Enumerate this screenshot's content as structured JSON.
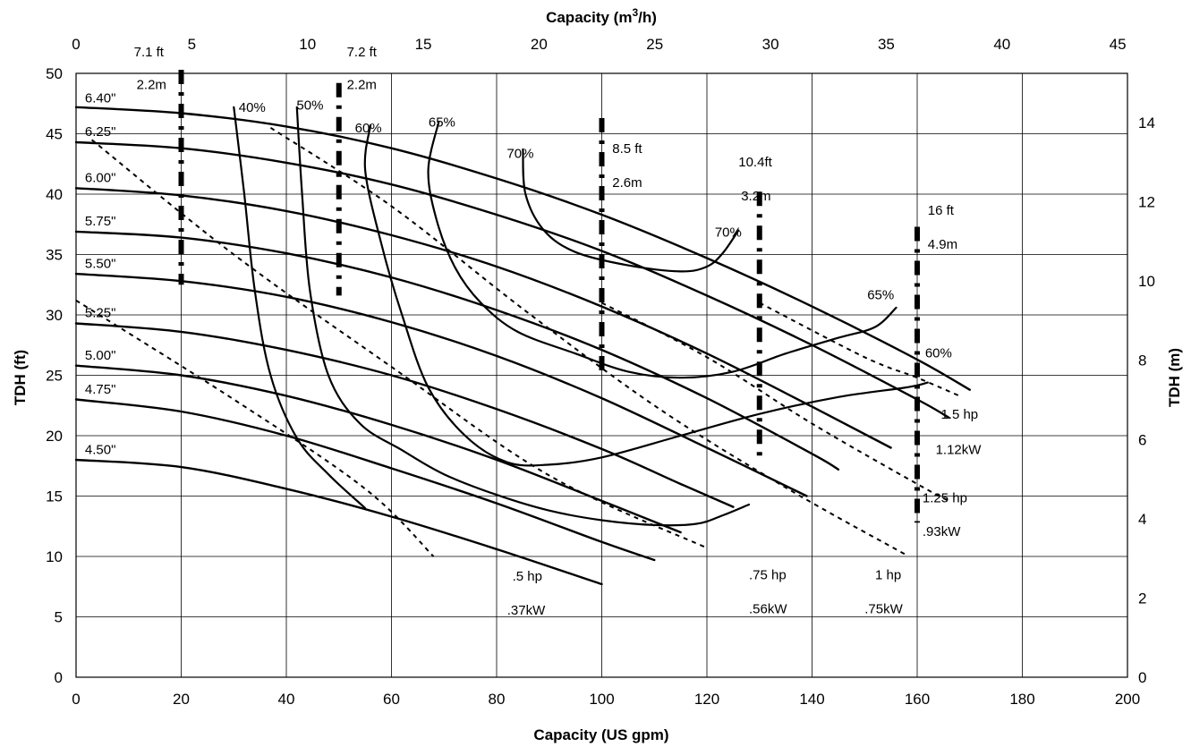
{
  "chart_data": {
    "type": "line",
    "xlabel": "Capacity (US gpm)",
    "x2label": "Capacity (m",
    "x2label_sup": "3",
    "x2label_end": "/h)",
    "ylabel": "TDH (ft)",
    "y2label": "TDH (m)",
    "xlim": [
      0,
      200
    ],
    "ylim": [
      0,
      50
    ],
    "x2lim": [
      0,
      45.42
    ],
    "y2lim": [
      0,
      15.24
    ],
    "x_ticks": [
      0,
      20,
      40,
      60,
      80,
      100,
      120,
      140,
      160,
      180,
      200
    ],
    "y_ticks": [
      0,
      5,
      10,
      15,
      20,
      25,
      30,
      35,
      40,
      45,
      50
    ],
    "x2_ticks": [
      0,
      5,
      10,
      15,
      20,
      25,
      30,
      35,
      40,
      45
    ],
    "y2_ticks": [
      0,
      2,
      4,
      6,
      8,
      10,
      12,
      14
    ],
    "grid": true,
    "impeller_curves": [
      {
        "name": "6.40\"",
        "label_at": [
          1,
          47.6
        ],
        "points": [
          [
            0,
            47.2
          ],
          [
            20,
            46.7
          ],
          [
            40,
            45.6
          ],
          [
            60,
            43.8
          ],
          [
            80,
            41.3
          ],
          [
            100,
            38.3
          ],
          [
            120,
            34.7
          ],
          [
            140,
            30.7
          ],
          [
            160,
            26.3
          ],
          [
            170,
            23.8
          ]
        ]
      },
      {
        "name": "6.25\"",
        "label_at": [
          1,
          44.8
        ],
        "points": [
          [
            0,
            44.3
          ],
          [
            20,
            43.8
          ],
          [
            40,
            42.6
          ],
          [
            60,
            40.8
          ],
          [
            80,
            38.3
          ],
          [
            100,
            35.3
          ],
          [
            120,
            31.6
          ],
          [
            140,
            27.5
          ],
          [
            160,
            23.0
          ],
          [
            166,
            21.5
          ]
        ]
      },
      {
        "name": "6.00\"",
        "label_at": [
          1,
          41.0
        ],
        "points": [
          [
            0,
            40.5
          ],
          [
            20,
            39.9
          ],
          [
            40,
            38.6
          ],
          [
            60,
            36.6
          ],
          [
            80,
            34.0
          ],
          [
            100,
            30.7
          ],
          [
            120,
            26.8
          ],
          [
            140,
            22.4
          ],
          [
            155,
            19.0
          ]
        ]
      },
      {
        "name": "5.75\"",
        "label_at": [
          1,
          37.4
        ],
        "points": [
          [
            0,
            36.9
          ],
          [
            20,
            36.4
          ],
          [
            40,
            35.1
          ],
          [
            60,
            33.1
          ],
          [
            80,
            30.4
          ],
          [
            100,
            27.1
          ],
          [
            120,
            23.1
          ],
          [
            140,
            18.5
          ],
          [
            145,
            17.2
          ]
        ]
      },
      {
        "name": "5.50\"",
        "label_at": [
          1,
          33.9
        ],
        "points": [
          [
            0,
            33.4
          ],
          [
            20,
            32.8
          ],
          [
            40,
            31.5
          ],
          [
            60,
            29.4
          ],
          [
            80,
            26.6
          ],
          [
            100,
            23.1
          ],
          [
            120,
            19.0
          ],
          [
            139,
            15.0
          ]
        ]
      },
      {
        "name": "5.25\"",
        "label_at": [
          1,
          29.8
        ],
        "points": [
          [
            0,
            29.3
          ],
          [
            20,
            28.6
          ],
          [
            40,
            27.1
          ],
          [
            60,
            25.0
          ],
          [
            80,
            22.2
          ],
          [
            100,
            18.9
          ],
          [
            115,
            16.0
          ],
          [
            125,
            14.1
          ]
        ]
      },
      {
        "name": "5.00\"",
        "label_at": [
          1,
          26.3
        ],
        "points": [
          [
            0,
            25.8
          ],
          [
            20,
            25.0
          ],
          [
            40,
            23.3
          ],
          [
            60,
            20.9
          ],
          [
            80,
            18.0
          ],
          [
            100,
            14.6
          ],
          [
            115,
            12.0
          ]
        ]
      },
      {
        "name": "4.75\"",
        "label_at": [
          1,
          23.5
        ],
        "points": [
          [
            0,
            23.0
          ],
          [
            20,
            22.0
          ],
          [
            40,
            20.0
          ],
          [
            60,
            17.3
          ],
          [
            80,
            14.4
          ],
          [
            100,
            11.2
          ],
          [
            110,
            9.7
          ]
        ]
      },
      {
        "name": "4.50\"",
        "label_at": [
          1,
          18.5
        ],
        "points": [
          [
            0,
            18.0
          ],
          [
            20,
            17.4
          ],
          [
            40,
            15.6
          ],
          [
            60,
            13.3
          ],
          [
            80,
            10.6
          ],
          [
            100,
            7.7
          ]
        ]
      }
    ],
    "efficiency_curves": [
      {
        "name": "40%",
        "label_at": [
          33.5,
          46.8
        ],
        "points": [
          [
            30,
            47.2
          ],
          [
            32,
            40
          ],
          [
            34,
            32
          ],
          [
            37,
            25
          ],
          [
            42,
            19.8
          ],
          [
            48,
            16.8
          ],
          [
            55,
            14.0
          ]
        ]
      },
      {
        "name": "50%",
        "label_at": [
          44.5,
          47.0
        ],
        "points": [
          [
            42,
            47.2
          ],
          [
            43,
            40
          ],
          [
            44.5,
            32
          ],
          [
            48,
            25
          ],
          [
            54,
            21
          ],
          [
            62,
            18.8
          ],
          [
            70,
            16.8
          ],
          [
            80,
            15.1
          ],
          [
            90,
            13.8
          ],
          [
            100,
            13.0
          ],
          [
            110,
            12.6
          ],
          [
            118,
            12.7
          ],
          [
            123,
            13.4
          ],
          [
            128,
            14.3
          ]
        ]
      },
      {
        "name": "60%",
        "label_at": [
          55.6,
          45.1
        ],
        "points": [
          [
            56,
            45.7
          ],
          [
            55,
            42
          ],
          [
            58,
            36
          ],
          [
            62,
            30
          ],
          [
            67,
            24
          ],
          [
            74,
            20
          ],
          [
            82,
            17.8
          ],
          [
            90,
            17.6
          ],
          [
            100,
            18.2
          ],
          [
            115,
            20.0
          ],
          [
            130,
            21.8
          ],
          [
            145,
            23.2
          ],
          [
            158,
            24.0
          ],
          [
            162,
            24.4
          ]
        ]
      },
      {
        "name": "65%",
        "label_at": [
          69.6,
          45.6
        ],
        "points": [
          [
            69,
            46.0
          ],
          [
            67,
            42.0
          ],
          [
            68.5,
            38
          ],
          [
            72,
            34
          ],
          [
            77,
            31
          ],
          [
            84,
            28.6
          ],
          [
            95,
            26.8
          ],
          [
            105,
            25.3
          ],
          [
            115,
            24.8
          ],
          [
            125,
            25.3
          ],
          [
            135,
            26.8
          ],
          [
            145,
            28.1
          ],
          [
            152,
            29.0
          ],
          [
            156,
            30.6
          ]
        ]
      },
      {
        "name": "70%",
        "label_at": [
          84.5,
          43.0
        ],
        "points": [
          [
            85,
            43.7
          ],
          [
            85.5,
            40
          ],
          [
            89,
            37
          ],
          [
            95,
            35.2
          ],
          [
            105,
            34.1
          ],
          [
            115,
            33.6
          ],
          [
            120,
            34.0
          ],
          [
            123,
            35.1
          ],
          [
            126,
            37.0
          ]
        ]
      }
    ],
    "efficiency_side_labels": [
      {
        "text": "70%",
        "at": [
          121.5,
          36.5
        ]
      },
      {
        "text": "65%",
        "at": [
          150.5,
          31.3
        ]
      },
      {
        "text": "60%",
        "at": [
          161.5,
          26.5
        ]
      }
    ],
    "power_lines": [
      {
        "label1": ".5 hp",
        "label2": ".37kW",
        "l1_at": [
          83,
          8.0
        ],
        "l2_at": [
          82,
          5.2
        ],
        "points": [
          [
            0,
            31.2
          ],
          [
            30,
            23.0
          ],
          [
            55,
            15.6
          ],
          [
            68,
            10.0
          ]
        ]
      },
      {
        "label1": ".75 hp",
        "label2": ".56kW",
        "l1_at": [
          128,
          8.1
        ],
        "l2_at": [
          128,
          5.3
        ],
        "points": [
          [
            3,
            44.5
          ],
          [
            30,
            35.0
          ],
          [
            60,
            25.7
          ],
          [
            90,
            16.7
          ],
          [
            120,
            10.7
          ]
        ]
      },
      {
        "label1": "1 hp",
        "label2": ".75kW",
        "l1_at": [
          152,
          8.1
        ],
        "l2_at": [
          150,
          5.3
        ],
        "points": [
          [
            37,
            45.5
          ],
          [
            60,
            39.0
          ],
          [
            85,
            30.5
          ],
          [
            110,
            22.5
          ],
          [
            135,
            15.7
          ],
          [
            158,
            10.1
          ]
        ]
      },
      {
        "label1": "1.25 hp",
        "label2": ".93kW",
        "l1_at": [
          161,
          14.5
        ],
        "l2_at": [
          161,
          11.7
        ],
        "points": [
          [
            100,
            31.0
          ],
          [
            120,
            26.5
          ],
          [
            140,
            21.0
          ],
          [
            160,
            16.0
          ],
          [
            166,
            14.6
          ]
        ]
      },
      {
        "label1": "1.5 hp",
        "label2": "1.12kW",
        "l1_at": [
          164.5,
          21.4
        ],
        "l2_at": [
          163.5,
          18.5
        ],
        "points": [
          [
            130,
            31.0
          ],
          [
            150,
            26.5
          ],
          [
            160,
            24.8
          ],
          [
            168,
            23.3
          ]
        ]
      }
    ],
    "npshr_lines": [
      {
        "x": 20,
        "y_top": 50.3,
        "y_bottom": 32.5,
        "label1": "7.1 ft",
        "label2": "2.2m",
        "l1_at": [
          11,
          51.4
        ],
        "l2_at": [
          11.5,
          48.7
        ]
      },
      {
        "x": 50,
        "y_top": 49.2,
        "y_bottom": 31.6,
        "label1": "7.2 ft",
        "label2": "2.2m",
        "l1_at": [
          51.5,
          51.4
        ],
        "l2_at": [
          51.5,
          48.7
        ]
      },
      {
        "x": 100,
        "y_top": 46.3,
        "y_bottom": 24.8,
        "label1": "8.5 ft",
        "label2": "2.6m",
        "l1_at": [
          102,
          43.4
        ],
        "l2_at": [
          102,
          40.6
        ]
      },
      {
        "x": 130,
        "y_top": 40.2,
        "y_bottom": 18.0,
        "label1": "10.4ft",
        "label2": "3.2m",
        "l1_at": [
          126,
          42.3
        ],
        "l2_at": [
          126.5,
          39.5
        ]
      },
      {
        "x": 160,
        "y_top": 37.3,
        "y_bottom": 12.8,
        "label1": "16 ft",
        "label2": "4.9m",
        "l1_at": [
          162,
          38.3
        ],
        "l2_at": [
          162,
          35.5
        ]
      }
    ]
  }
}
